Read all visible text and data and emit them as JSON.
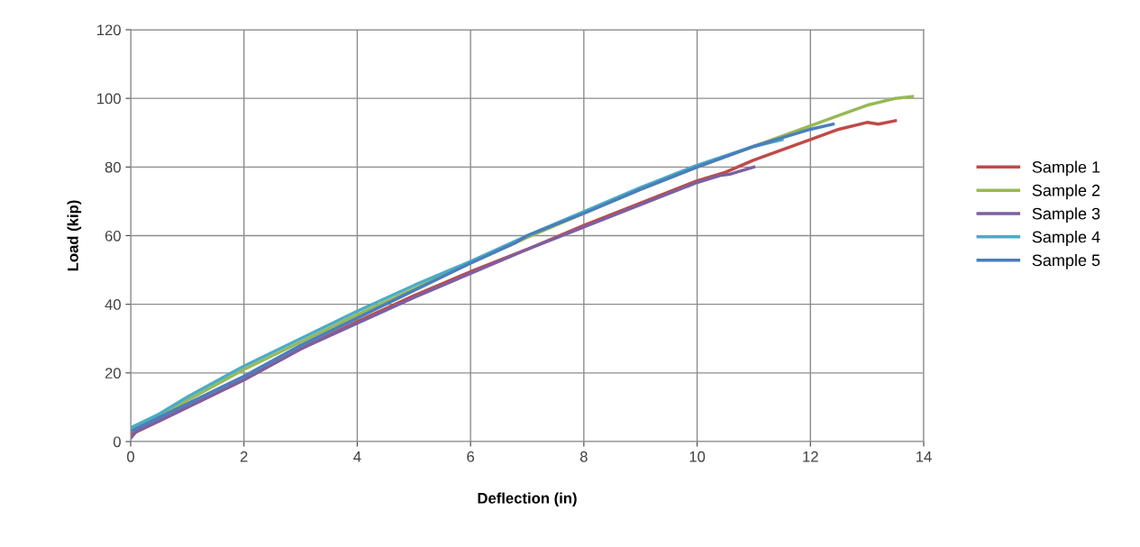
{
  "chart_data": {
    "type": "line",
    "xlabel": "Deflection (in)",
    "ylabel": "Load (kip)",
    "xlim": [
      0,
      14
    ],
    "ylim": [
      0,
      120
    ],
    "xticks": [
      0,
      2,
      4,
      6,
      8,
      10,
      12,
      14
    ],
    "yticks": [
      0,
      20,
      40,
      60,
      80,
      100,
      120
    ],
    "grid": true,
    "legend": "right",
    "marker": "none",
    "line_style": "solid",
    "series": [
      {
        "name": "Sample 1",
        "color": "#be4b48",
        "x": [
          0,
          0.5,
          1,
          2,
          3,
          4,
          5,
          6,
          7,
          8,
          9,
          10,
          10.5,
          11,
          12,
          12.5,
          13,
          13.2,
          13.5
        ],
        "values": [
          2,
          6,
          10,
          18,
          27,
          35,
          42.5,
          49.5,
          56,
          63,
          69.5,
          76,
          78.5,
          82,
          88,
          91,
          93,
          92.5,
          93.5
        ]
      },
      {
        "name": "Sample 2",
        "color": "#98b954",
        "x": [
          0,
          1,
          2,
          3,
          4,
          5,
          6,
          7,
          8,
          9,
          10,
          11,
          12,
          12.5,
          13,
          13.5,
          13.8
        ],
        "values": [
          3,
          12,
          21,
          29,
          37,
          44.5,
          52,
          59.5,
          66.5,
          73.5,
          80,
          86,
          92,
          95,
          98,
          100,
          100.5
        ]
      },
      {
        "name": "Sample 3",
        "color": "#7d5fa0",
        "x": [
          0,
          0.1,
          0.5,
          1,
          2,
          3,
          4,
          5,
          6,
          7,
          8,
          9,
          10,
          10.4,
          10.6,
          11
        ],
        "values": [
          1,
          3,
          6,
          10,
          18,
          27,
          34.5,
          42,
          49,
          56,
          62.5,
          69,
          75.5,
          77.5,
          78,
          80
        ]
      },
      {
        "name": "Sample 4",
        "color": "#4bacc6",
        "x": [
          0,
          0.5,
          1,
          2,
          3,
          4,
          5,
          6,
          7,
          8,
          9,
          10,
          11,
          11.5
        ],
        "values": [
          4,
          8,
          13,
          22,
          30,
          38,
          45.5,
          52.5,
          60,
          67,
          74,
          80.5,
          86,
          88
        ]
      },
      {
        "name": "Sample 5",
        "color": "#4a7ebb",
        "x": [
          0,
          0.5,
          1,
          2,
          3,
          4,
          5,
          6,
          6.8,
          7,
          8,
          9,
          10,
          11,
          11.5,
          12,
          12.4
        ],
        "values": [
          3,
          7,
          11,
          19,
          28,
          36,
          44,
          52,
          58,
          60,
          66.5,
          73.5,
          80,
          86,
          88.5,
          91,
          92.5
        ]
      }
    ]
  }
}
